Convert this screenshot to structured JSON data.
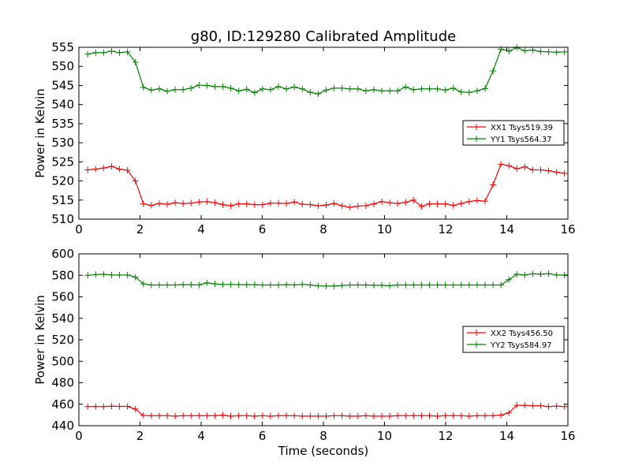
{
  "figure": {
    "title": "g80, ID:129280 Calibrated Amplitude",
    "xlabel": "Time (seconds)"
  },
  "chart_data": [
    {
      "type": "line",
      "title": "g80, ID:129280 Calibrated Amplitude",
      "xlabel": "",
      "ylabel": "Power in Kelvin",
      "xlim": [
        0,
        16
      ],
      "ylim": [
        510,
        555
      ],
      "xticks": [
        0,
        2,
        4,
        6,
        8,
        10,
        12,
        14,
        16
      ],
      "yticks": [
        510,
        515,
        520,
        525,
        530,
        535,
        540,
        545,
        550,
        555
      ],
      "grid": false,
      "legend_position": "right",
      "x": [
        0.29,
        0.55,
        0.81,
        1.07,
        1.33,
        1.59,
        1.85,
        2.11,
        2.37,
        2.63,
        2.89,
        3.15,
        3.41,
        3.67,
        3.93,
        4.19,
        4.45,
        4.71,
        4.97,
        5.23,
        5.49,
        5.75,
        6.01,
        6.27,
        6.53,
        6.79,
        7.05,
        7.31,
        7.57,
        7.83,
        8.09,
        8.35,
        8.61,
        8.87,
        9.13,
        9.39,
        9.65,
        9.91,
        10.17,
        10.43,
        10.69,
        10.95,
        11.21,
        11.47,
        11.73,
        11.99,
        12.25,
        12.51,
        12.77,
        13.03,
        13.29,
        13.55,
        13.81,
        14.07,
        14.33,
        14.59,
        14.85,
        15.11,
        15.37,
        15.63,
        15.89
      ],
      "series": [
        {
          "name": "XX1 Tsys519.39",
          "color": "#ff0000",
          "values": [
            522.9,
            523.1,
            523.4,
            523.8,
            523.1,
            522.8,
            520.0,
            514.0,
            513.6,
            514.1,
            513.9,
            514.3,
            514.1,
            514.2,
            514.5,
            514.6,
            514.3,
            513.8,
            513.5,
            514.0,
            514.0,
            513.8,
            513.8,
            514.2,
            514.2,
            514.1,
            514.5,
            513.9,
            513.8,
            513.5,
            513.7,
            514.1,
            513.5,
            513.1,
            513.4,
            513.5,
            514.0,
            514.6,
            514.3,
            514.1,
            514.4,
            515.0,
            513.3,
            514.0,
            514.0,
            514.0,
            513.6,
            514.1,
            514.6,
            514.9,
            514.7,
            519.0,
            524.4,
            524.0,
            523.2,
            523.7,
            522.9,
            522.9,
            522.7,
            522.3,
            522.0
          ],
          "x_override": [
            0.29,
            0.55,
            0.81,
            1.07,
            1.33,
            1.59,
            1.85,
            2.11,
            2.37,
            2.63,
            2.89,
            3.15,
            3.41,
            3.67,
            3.93,
            4.19,
            4.45,
            4.71,
            4.97,
            5.23,
            5.49,
            5.75,
            6.01,
            6.27,
            6.53,
            6.79,
            7.05,
            7.31,
            7.57,
            7.83,
            8.09,
            8.35,
            8.61,
            8.87,
            9.13,
            9.39,
            9.65,
            9.91,
            10.17,
            10.43,
            10.69,
            10.95,
            11.21,
            11.47,
            11.73,
            11.99,
            12.25,
            12.51,
            12.77,
            13.03,
            13.29,
            13.55,
            13.81,
            14.07,
            14.33,
            14.59,
            14.85,
            15.11,
            15.37,
            15.63,
            15.89
          ]
        },
        {
          "name": "YY1 Tsys564.37",
          "color": "#008000",
          "values": [
            553.2,
            553.6,
            553.6,
            554.0,
            553.6,
            553.8,
            551.1,
            544.5,
            543.8,
            544.1,
            543.5,
            543.9,
            543.9,
            544.3,
            545.1,
            545.0,
            544.7,
            544.7,
            544.3,
            543.6,
            544.0,
            543.1,
            544.1,
            543.9,
            544.7,
            544.1,
            544.6,
            544.1,
            543.2,
            542.8,
            543.8,
            544.3,
            544.3,
            544.1,
            544.1,
            543.6,
            543.9,
            543.6,
            543.6,
            543.6,
            544.6,
            543.9,
            544.1,
            544.1,
            544.1,
            543.8,
            544.3,
            543.3,
            543.2,
            543.6,
            544.2,
            548.8,
            554.5,
            554.0,
            554.9,
            554.1,
            554.3,
            553.9,
            553.8,
            553.7,
            553.8
          ]
        }
      ]
    },
    {
      "type": "line",
      "title": "",
      "xlabel": "Time (seconds)",
      "ylabel": "Power in Kelvin",
      "xlim": [
        0,
        16
      ],
      "ylim": [
        440,
        600
      ],
      "xticks": [
        0,
        2,
        4,
        6,
        8,
        10,
        12,
        14,
        16
      ],
      "yticks": [
        440,
        460,
        480,
        500,
        520,
        540,
        560,
        580,
        600
      ],
      "grid": false,
      "legend_position": "right",
      "x": [
        0.29,
        0.55,
        0.81,
        1.07,
        1.33,
        1.59,
        1.85,
        2.11,
        2.37,
        2.63,
        2.89,
        3.15,
        3.41,
        3.67,
        3.93,
        4.19,
        4.45,
        4.71,
        4.97,
        5.23,
        5.49,
        5.75,
        6.01,
        6.27,
        6.53,
        6.79,
        7.05,
        7.31,
        7.57,
        7.83,
        8.09,
        8.35,
        8.61,
        8.87,
        9.13,
        9.39,
        9.65,
        9.91,
        10.17,
        10.43,
        10.69,
        10.95,
        11.21,
        11.47,
        11.73,
        11.99,
        12.25,
        12.51,
        12.77,
        13.03,
        13.29,
        13.55,
        13.81,
        14.07,
        14.33,
        14.59,
        14.85,
        15.11,
        15.37,
        15.63,
        15.89
      ],
      "series": [
        {
          "name": "XX2 Tsys456.50",
          "color": "#ff0000",
          "values": [
            457.8,
            457.8,
            457.8,
            458.2,
            458.0,
            458.0,
            455.5,
            449.5,
            449.3,
            449.3,
            449.3,
            448.9,
            449.3,
            449.3,
            449.3,
            449.3,
            449.3,
            449.8,
            448.9,
            449.3,
            449.3,
            448.9,
            449.3,
            448.9,
            449.3,
            449.3,
            449.3,
            448.9,
            448.9,
            448.9,
            448.9,
            449.3,
            449.3,
            448.9,
            448.9,
            449.3,
            448.9,
            448.9,
            448.9,
            449.3,
            449.3,
            449.3,
            449.3,
            449.3,
            448.9,
            449.3,
            449.3,
            449.3,
            448.9,
            449.3,
            449.3,
            449.3,
            449.8,
            452.0,
            459.0,
            459.0,
            458.6,
            458.6,
            457.8,
            458.2,
            457.8
          ]
        },
        {
          "name": "YY2 Tsys584.97",
          "color": "#008000",
          "values": [
            580.0,
            580.7,
            581.0,
            580.3,
            580.3,
            580.3,
            578.3,
            572.0,
            571.0,
            571.0,
            571.0,
            571.0,
            571.3,
            571.3,
            571.0,
            573.0,
            572.0,
            571.5,
            571.5,
            571.3,
            571.3,
            571.3,
            571.0,
            571.0,
            571.0,
            571.3,
            571.0,
            571.6,
            571.0,
            570.3,
            570.0,
            570.0,
            570.5,
            571.0,
            571.0,
            571.0,
            570.7,
            570.7,
            570.3,
            571.0,
            571.0,
            571.0,
            571.0,
            571.0,
            571.0,
            571.0,
            571.0,
            571.0,
            571.0,
            571.0,
            571.0,
            571.0,
            571.0,
            576.0,
            581.0,
            580.3,
            581.5,
            581.0,
            581.5,
            580.3,
            580.3
          ]
        }
      ]
    }
  ]
}
